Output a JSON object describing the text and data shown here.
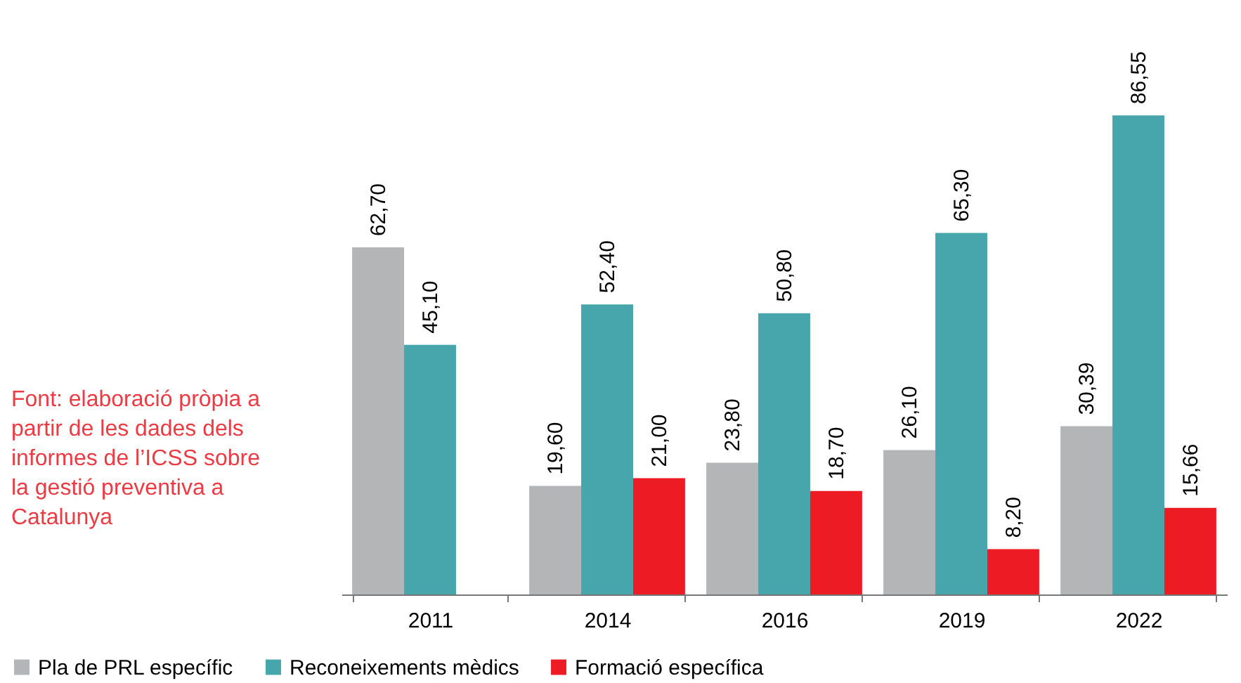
{
  "chart_data": {
    "type": "bar",
    "categories": [
      "2011",
      "2014",
      "2016",
      "2019",
      "2022"
    ],
    "series": [
      {
        "name": "Pla de PRL específic",
        "color": "#b3b5b6",
        "values": [
          62.7,
          19.6,
          23.8,
          26.1,
          30.39
        ],
        "value_labels": [
          "62,70",
          "19,60",
          "23,80",
          "26,10",
          "30,39"
        ]
      },
      {
        "name": "Reconeixements mèdics",
        "color": "#46a6ab",
        "values": [
          45.1,
          52.4,
          50.8,
          65.3,
          86.55
        ],
        "value_labels": [
          "45,10",
          "52,40",
          "50,80",
          "65,30",
          "86,55"
        ]
      },
      {
        "name": "Formació específica",
        "color": "#ed1c24",
        "values": [
          null,
          21.0,
          18.7,
          8.2,
          15.66
        ],
        "value_labels": [
          null,
          "21,00",
          "18,70",
          "8,20",
          "15,66"
        ]
      }
    ],
    "annotations": [
      "Font: elaboració pròpia a partir de les dades dels informes de l’ICSS sobre la gestió preventiva a Catalunya"
    ],
    "legend": "bottom",
    "grid": false
  }
}
